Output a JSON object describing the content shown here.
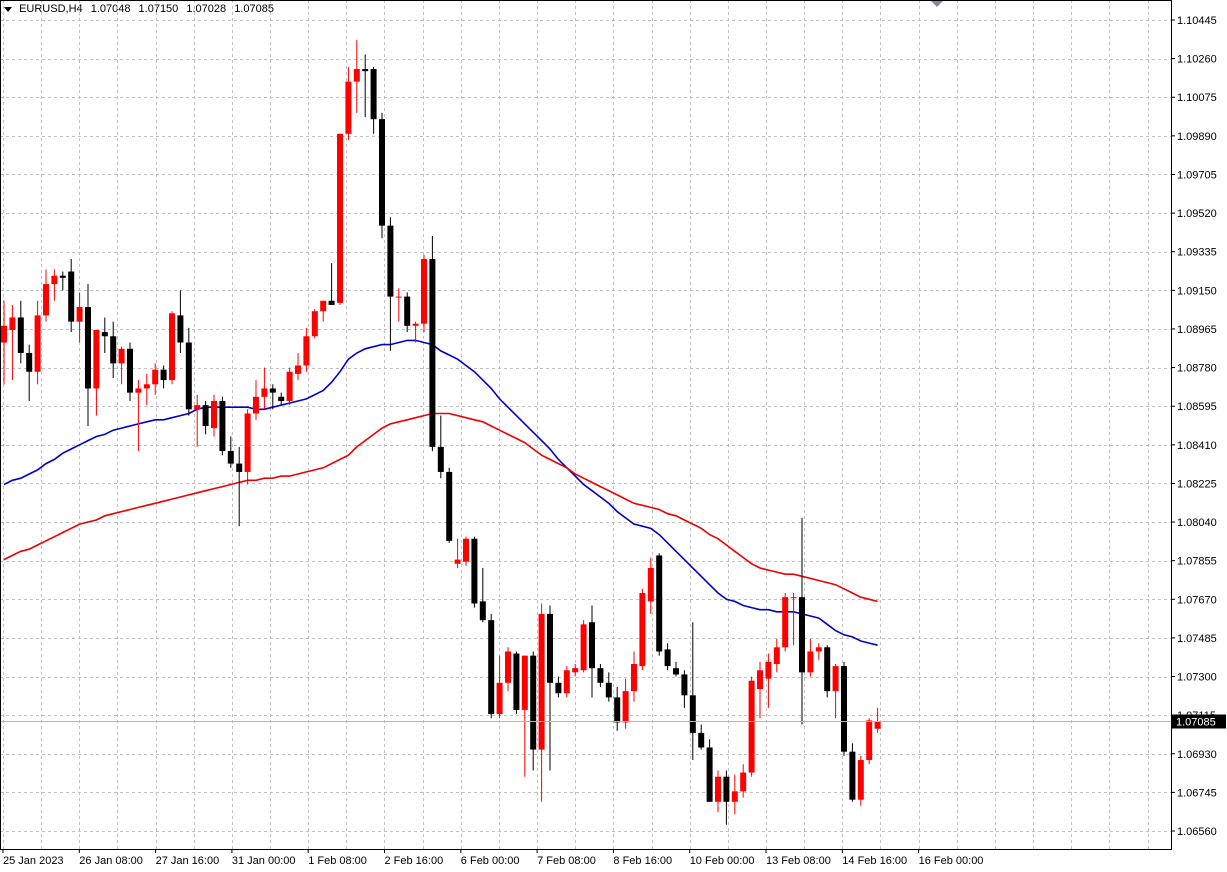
{
  "header": {
    "symbol": "EURUSD,H4",
    "open": "1.07048",
    "high": "1.07150",
    "low": "1.07028",
    "close": "1.07085"
  },
  "current_price_label": "1.07085",
  "colors": {
    "bull": "#ff0000",
    "bear": "#000000",
    "ma_fast": "#0000cc",
    "ma_slow": "#ee0000",
    "grid": "#c0c0c0",
    "price_line": "#a8b8c8"
  },
  "chart_data": {
    "type": "candlestick",
    "timeframe": "H4",
    "ylim": [
      1.0647,
      1.1053
    ],
    "y_ticks": [
      "1.10445",
      "1.10260",
      "1.10075",
      "1.09890",
      "1.09705",
      "1.09520",
      "1.09335",
      "1.09150",
      "1.08965",
      "1.08780",
      "1.08595",
      "1.08410",
      "1.08225",
      "1.08040",
      "1.07855",
      "1.07670",
      "1.07485",
      "1.07300",
      "1.07115",
      "1.06930",
      "1.06745",
      "1.06560"
    ],
    "x_labels": [
      "25 Jan 2023",
      "26 Jan 08:00",
      "27 Jan 16:00",
      "31 Jan 00:00",
      "1 Feb 08:00",
      "2 Feb 16:00",
      "6 Feb 00:00",
      "7 Feb 08:00",
      "8 Feb 16:00",
      "10 Feb 00:00",
      "13 Feb 08:00",
      "14 Feb 16:00",
      "16 Feb 00:00"
    ],
    "candles": [
      {
        "o": 1.089,
        "h": 1.091,
        "l": 1.087,
        "c": 1.0898
      },
      {
        "o": 1.0896,
        "h": 1.0908,
        "l": 1.0872,
        "c": 1.0902
      },
      {
        "o": 1.0902,
        "h": 1.091,
        "l": 1.088,
        "c": 1.0885
      },
      {
        "o": 1.0885,
        "h": 1.0889,
        "l": 1.0862,
        "c": 1.0876
      },
      {
        "o": 1.0876,
        "h": 1.091,
        "l": 1.087,
        "c": 1.0903
      },
      {
        "o": 1.0903,
        "h": 1.0925,
        "l": 1.09,
        "c": 1.0918
      },
      {
        "o": 1.0918,
        "h": 1.0925,
        "l": 1.091,
        "c": 1.0922
      },
      {
        "o": 1.0922,
        "h": 1.0924,
        "l": 1.0915,
        "c": 1.0921
      },
      {
        "o": 1.0924,
        "h": 1.093,
        "l": 1.0895,
        "c": 1.09
      },
      {
        "o": 1.09,
        "h": 1.0914,
        "l": 1.089,
        "c": 1.0907
      },
      {
        "o": 1.0907,
        "h": 1.0918,
        "l": 1.085,
        "c": 1.0868
      },
      {
        "o": 1.0868,
        "h": 1.0895,
        "l": 1.0855,
        "c": 1.0896
      },
      {
        "o": 1.0895,
        "h": 1.0902,
        "l": 1.0885,
        "c": 1.0893
      },
      {
        "o": 1.0893,
        "h": 1.09,
        "l": 1.0873,
        "c": 1.088
      },
      {
        "o": 1.088,
        "h": 1.0888,
        "l": 1.087,
        "c": 1.0887
      },
      {
        "o": 1.0887,
        "h": 1.089,
        "l": 1.0862,
        "c": 1.0866
      },
      {
        "o": 1.0866,
        "h": 1.0872,
        "l": 1.0838,
        "c": 1.0868
      },
      {
        "o": 1.0868,
        "h": 1.0875,
        "l": 1.086,
        "c": 1.087
      },
      {
        "o": 1.087,
        "h": 1.088,
        "l": 1.0865,
        "c": 1.0877
      },
      {
        "o": 1.0877,
        "h": 1.0879,
        "l": 1.0868,
        "c": 1.0872
      },
      {
        "o": 1.0872,
        "h": 1.0905,
        "l": 1.087,
        "c": 1.0904
      },
      {
        "o": 1.0903,
        "h": 1.0915,
        "l": 1.0885,
        "c": 1.089
      },
      {
        "o": 1.089,
        "h": 1.0897,
        "l": 1.0855,
        "c": 1.0858
      },
      {
        "o": 1.0858,
        "h": 1.0865,
        "l": 1.084,
        "c": 1.086
      },
      {
        "o": 1.086,
        "h": 1.0862,
        "l": 1.0846,
        "c": 1.085
      },
      {
        "o": 1.0849,
        "h": 1.0865,
        "l": 1.0845,
        "c": 1.0862
      },
      {
        "o": 1.0862,
        "h": 1.0864,
        "l": 1.0836,
        "c": 1.0838
      },
      {
        "o": 1.0838,
        "h": 1.0845,
        "l": 1.083,
        "c": 1.0832
      },
      {
        "o": 1.0832,
        "h": 1.084,
        "l": 1.0802,
        "c": 1.0828
      },
      {
        "o": 1.0828,
        "h": 1.0858,
        "l": 1.0822,
        "c": 1.0856
      },
      {
        "o": 1.0856,
        "h": 1.0872,
        "l": 1.0853,
        "c": 1.0864
      },
      {
        "o": 1.0864,
        "h": 1.0878,
        "l": 1.0858,
        "c": 1.0868
      },
      {
        "o": 1.0868,
        "h": 1.087,
        "l": 1.0858,
        "c": 1.0866
      },
      {
        "o": 1.0864,
        "h": 1.0866,
        "l": 1.086,
        "c": 1.0862
      },
      {
        "o": 1.0862,
        "h": 1.0878,
        "l": 1.086,
        "c": 1.0876
      },
      {
        "o": 1.0875,
        "h": 1.0885,
        "l": 1.0872,
        "c": 1.0879
      },
      {
        "o": 1.0879,
        "h": 1.0897,
        "l": 1.0876,
        "c": 1.0893
      },
      {
        "o": 1.0893,
        "h": 1.0906,
        "l": 1.0892,
        "c": 1.0905
      },
      {
        "o": 1.0905,
        "h": 1.091,
        "l": 1.09,
        "c": 1.091
      },
      {
        "o": 1.091,
        "h": 1.0928,
        "l": 1.0908,
        "c": 1.0908
      },
      {
        "o": 1.0909,
        "h": 1.099,
        "l": 1.0908,
        "c": 1.099
      },
      {
        "o": 1.099,
        "h": 1.1022,
        "l": 1.0987,
        "c": 1.1015
      },
      {
        "o": 1.1015,
        "h": 1.1035,
        "l": 1.1,
        "c": 1.1021
      },
      {
        "o": 1.1021,
        "h": 1.1028,
        "l": 1.0998,
        "c": 1.102
      },
      {
        "o": 1.1021,
        "h": 1.1022,
        "l": 1.099,
        "c": 1.0997
      },
      {
        "o": 1.0997,
        "h": 1.1,
        "l": 1.094,
        "c": 1.0946
      },
      {
        "o": 1.0946,
        "h": 1.095,
        "l": 1.0886,
        "c": 1.0912
      },
      {
        "o": 1.0912,
        "h": 1.0916,
        "l": 1.09,
        "c": 1.0912
      },
      {
        "o": 1.0912,
        "h": 1.0914,
        "l": 1.0895,
        "c": 1.0898
      },
      {
        "o": 1.0898,
        "h": 1.09,
        "l": 1.089,
        "c": 1.0899
      },
      {
        "o": 1.0899,
        "h": 1.0932,
        "l": 1.0895,
        "c": 1.093
      },
      {
        "o": 1.093,
        "h": 1.0941,
        "l": 1.0838,
        "c": 1.084
      },
      {
        "o": 1.084,
        "h": 1.0855,
        "l": 1.0825,
        "c": 1.0828
      },
      {
        "o": 1.0828,
        "h": 1.083,
        "l": 1.0794,
        "c": 1.0795
      },
      {
        "o": 1.0784,
        "h": 1.0796,
        "l": 1.0782,
        "c": 1.0786
      },
      {
        "o": 1.0785,
        "h": 1.0797,
        "l": 1.0783,
        "c": 1.0796
      },
      {
        "o": 1.0796,
        "h": 1.0797,
        "l": 1.0763,
        "c": 1.0765
      },
      {
        "o": 1.0766,
        "h": 1.0782,
        "l": 1.0756,
        "c": 1.0757
      },
      {
        "o": 1.0757,
        "h": 1.076,
        "l": 1.071,
        "c": 1.0712
      },
      {
        "o": 1.0712,
        "h": 1.074,
        "l": 1.071,
        "c": 1.0727
      },
      {
        "o": 1.0727,
        "h": 1.0744,
        "l": 1.0723,
        "c": 1.0742
      },
      {
        "o": 1.0741,
        "h": 1.0742,
        "l": 1.0712,
        "c": 1.0714
      },
      {
        "o": 1.0714,
        "h": 1.074,
        "l": 1.0682,
        "c": 1.074
      },
      {
        "o": 1.074,
        "h": 1.0742,
        "l": 1.0685,
        "c": 1.0695
      },
      {
        "o": 1.0695,
        "h": 1.0765,
        "l": 1.067,
        "c": 1.076
      },
      {
        "o": 1.076,
        "h": 1.0764,
        "l": 1.0685,
        "c": 1.0727
      },
      {
        "o": 1.0727,
        "h": 1.073,
        "l": 1.072,
        "c": 1.0722
      },
      {
        "o": 1.0722,
        "h": 1.0735,
        "l": 1.072,
        "c": 1.0733
      },
      {
        "o": 1.0732,
        "h": 1.0736,
        "l": 1.073,
        "c": 1.0734
      },
      {
        "o": 1.0733,
        "h": 1.0757,
        "l": 1.0732,
        "c": 1.0755
      },
      {
        "o": 1.0756,
        "h": 1.0764,
        "l": 1.072,
        "c": 1.0734
      },
      {
        "o": 1.0734,
        "h": 1.0736,
        "l": 1.0725,
        "c": 1.0727
      },
      {
        "o": 1.0727,
        "h": 1.0732,
        "l": 1.0718,
        "c": 1.072
      },
      {
        "o": 1.072,
        "h": 1.0725,
        "l": 1.0704,
        "c": 1.0708
      },
      {
        "o": 1.0708,
        "h": 1.0729,
        "l": 1.0705,
        "c": 1.0723
      },
      {
        "o": 1.0723,
        "h": 1.0742,
        "l": 1.0718,
        "c": 1.0736
      },
      {
        "o": 1.0735,
        "h": 1.0772,
        "l": 1.0733,
        "c": 1.077
      },
      {
        "o": 1.0766,
        "h": 1.0787,
        "l": 1.076,
        "c": 1.0782
      },
      {
        "o": 1.0788,
        "h": 1.0789,
        "l": 1.074,
        "c": 1.0742
      },
      {
        "o": 1.0743,
        "h": 1.0746,
        "l": 1.0733,
        "c": 1.0735
      },
      {
        "o": 1.0734,
        "h": 1.0737,
        "l": 1.073,
        "c": 1.0731
      },
      {
        "o": 1.0731,
        "h": 1.0733,
        "l": 1.0715,
        "c": 1.0721
      },
      {
        "o": 1.0721,
        "h": 1.0756,
        "l": 1.069,
        "c": 1.0703
      },
      {
        "o": 1.0703,
        "h": 1.0707,
        "l": 1.0695,
        "c": 1.0696
      },
      {
        "o": 1.0696,
        "h": 1.07,
        "l": 1.067,
        "c": 1.067
      },
      {
        "o": 1.067,
        "h": 1.0685,
        "l": 1.0665,
        "c": 1.0682
      },
      {
        "o": 1.0682,
        "h": 1.0685,
        "l": 1.0659,
        "c": 1.067
      },
      {
        "o": 1.067,
        "h": 1.0683,
        "l": 1.0664,
        "c": 1.0675
      },
      {
        "o": 1.0675,
        "h": 1.0688,
        "l": 1.0672,
        "c": 1.0684
      },
      {
        "o": 1.0684,
        "h": 1.073,
        "l": 1.0682,
        "c": 1.0728
      },
      {
        "o": 1.0724,
        "h": 1.0737,
        "l": 1.071,
        "c": 1.0733
      },
      {
        "o": 1.0729,
        "h": 1.0741,
        "l": 1.0715,
        "c": 1.0737
      },
      {
        "o": 1.0736,
        "h": 1.0748,
        "l": 1.0732,
        "c": 1.0744
      },
      {
        "o": 1.0744,
        "h": 1.077,
        "l": 1.0742,
        "c": 1.0768
      },
      {
        "o": 1.0768,
        "h": 1.077,
        "l": 1.0745,
        "c": 1.0768
      },
      {
        "o": 1.0768,
        "h": 1.0806,
        "l": 1.0707,
        "c": 1.0732
      },
      {
        "o": 1.0732,
        "h": 1.0748,
        "l": 1.073,
        "c": 1.0742
      },
      {
        "o": 1.0742,
        "h": 1.0746,
        "l": 1.0738,
        "c": 1.0744
      },
      {
        "o": 1.0744,
        "h": 1.0745,
        "l": 1.072,
        "c": 1.0723
      },
      {
        "o": 1.0723,
        "h": 1.0736,
        "l": 1.071,
        "c": 1.0735
      },
      {
        "o": 1.0735,
        "h": 1.0737,
        "l": 1.0692,
        "c": 1.0694
      },
      {
        "o": 1.0694,
        "h": 1.0698,
        "l": 1.067,
        "c": 1.0671
      },
      {
        "o": 1.0671,
        "h": 1.0692,
        "l": 1.0668,
        "c": 1.069
      },
      {
        "o": 1.069,
        "h": 1.071,
        "l": 1.0688,
        "c": 1.0709
      },
      {
        "o": 1.0705,
        "h": 1.0715,
        "l": 1.0703,
        "c": 1.07085
      }
    ],
    "series": [
      {
        "type": "line",
        "values": [
          1.0822,
          1.0824,
          1.0825,
          1.0827,
          1.0829,
          1.0832,
          1.0834,
          1.0837,
          1.0839,
          1.0841,
          1.0843,
          1.0845,
          1.0846,
          1.0848,
          1.0849,
          1.085,
          1.0851,
          1.0852,
          1.0853,
          1.0853,
          1.0854,
          1.0855,
          1.0856,
          1.0858,
          1.0859,
          1.0859,
          1.0859,
          1.0859,
          1.0859,
          1.0859,
          1.0858,
          1.0858,
          1.0859,
          1.086,
          1.0861,
          1.0862,
          1.0863,
          1.0865,
          1.0867,
          1.0871,
          1.0876,
          1.0882,
          1.0885,
          1.0887,
          1.0888,
          1.0889,
          1.0889,
          1.089,
          1.0891,
          1.0891,
          1.089,
          1.0889,
          1.0886,
          1.0884,
          1.0882,
          1.0879,
          1.0876,
          1.0872,
          1.0868,
          1.0863,
          1.0859,
          1.0855,
          1.0851,
          1.0847,
          1.0843,
          1.0839,
          1.0834,
          1.083,
          1.0826,
          1.0822,
          1.0819,
          1.0816,
          1.0813,
          1.0809,
          1.0806,
          1.0803,
          1.0802,
          1.0801,
          1.0798,
          1.0794,
          1.079,
          1.0786,
          1.0782,
          1.0778,
          1.0774,
          1.077,
          1.0767,
          1.0766,
          1.0764,
          1.0763,
          1.0762,
          1.0762,
          1.0761,
          1.0761,
          1.0761,
          1.076,
          1.0759,
          1.0758,
          1.0755,
          1.0752,
          1.075,
          1.0749,
          1.0747,
          1.0746,
          1.0745
        ]
      },
      {
        "type": "line",
        "values": [
          1.0786,
          1.0788,
          1.079,
          1.0791,
          1.0793,
          1.0795,
          1.0797,
          1.0799,
          1.0801,
          1.0803,
          1.0804,
          1.0805,
          1.0807,
          1.0808,
          1.0809,
          1.081,
          1.0811,
          1.0812,
          1.0813,
          1.0814,
          1.0815,
          1.0816,
          1.0817,
          1.0818,
          1.0819,
          1.082,
          1.0821,
          1.0822,
          1.0823,
          1.0824,
          1.0824,
          1.0825,
          1.0825,
          1.0826,
          1.0826,
          1.0827,
          1.0828,
          1.0829,
          1.083,
          1.0832,
          1.0834,
          1.0836,
          1.084,
          1.0843,
          1.0846,
          1.0849,
          1.0851,
          1.0852,
          1.0853,
          1.0854,
          1.0855,
          1.0856,
          1.0856,
          1.0856,
          1.0855,
          1.0854,
          1.0853,
          1.0852,
          1.085,
          1.0848,
          1.0846,
          1.0844,
          1.0842,
          1.0839,
          1.0836,
          1.0834,
          1.0832,
          1.083,
          1.0827,
          1.0825,
          1.0823,
          1.0821,
          1.0819,
          1.0817,
          1.0815,
          1.0813,
          1.0812,
          1.0811,
          1.081,
          1.0808,
          1.0807,
          1.0805,
          1.0803,
          1.0801,
          1.0798,
          1.0796,
          1.0793,
          1.079,
          1.0787,
          1.0784,
          1.0782,
          1.0781,
          1.078,
          1.0779,
          1.0779,
          1.0778,
          1.0777,
          1.0776,
          1.0775,
          1.0774,
          1.0772,
          1.077,
          1.0768,
          1.0767,
          1.0766
        ]
      }
    ]
  }
}
